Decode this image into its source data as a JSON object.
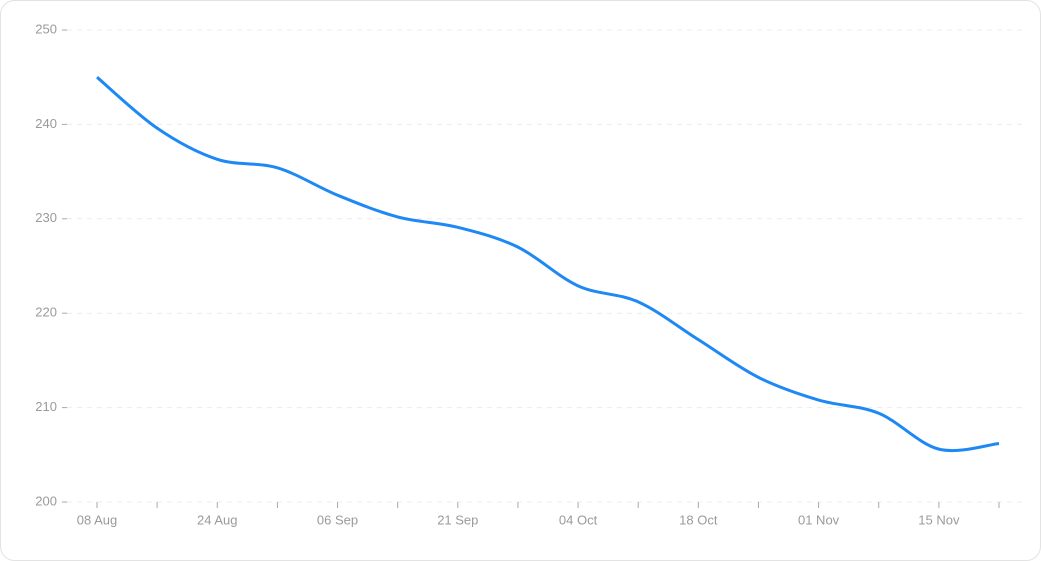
{
  "chart_data": {
    "type": "line",
    "categories": [
      "08 Aug",
      null,
      "24 Aug",
      null,
      "06 Sep",
      null,
      "21 Sep",
      null,
      "04 Oct",
      null,
      "18 Oct",
      null,
      "01 Nov",
      null,
      "15 Nov",
      null
    ],
    "values": [
      245,
      239.6,
      236.3,
      235.4,
      232.5,
      230.2,
      229.1,
      227.0,
      222.9,
      221.2,
      217.2,
      213.2,
      210.8,
      209.4,
      205.6,
      206.2
    ],
    "color": "#1e88f5",
    "ylim": [
      200,
      250
    ],
    "yticks": [
      200,
      210,
      220,
      230,
      240,
      250
    ],
    "grid": true
  }
}
